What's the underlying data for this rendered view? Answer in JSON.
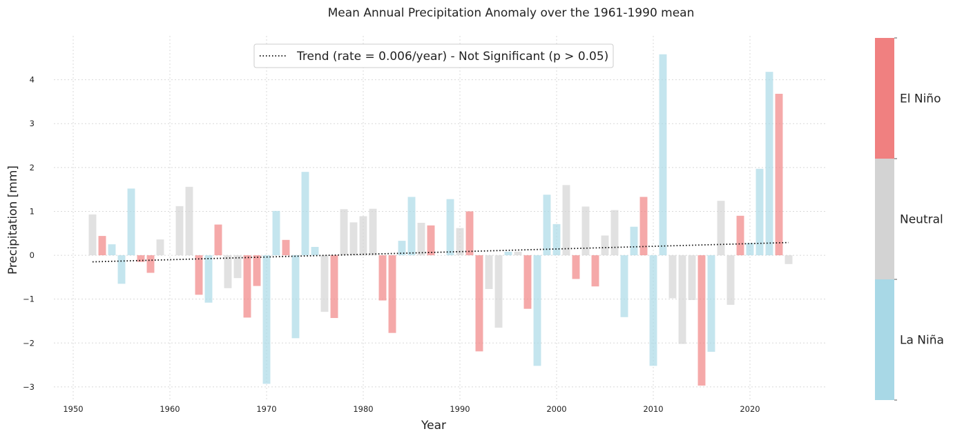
{
  "chart_data": {
    "type": "bar",
    "title": "Mean Annual Precipitation Anomaly over the 1961-1990 mean",
    "xlabel": "Year",
    "ylabel": "Precipitation [mm]",
    "xlim": [
      1948,
      2028
    ],
    "ylim": [
      -3.3,
      5.0
    ],
    "xticks": [
      1950,
      1960,
      1970,
      1980,
      1990,
      2000,
      2010,
      2020
    ],
    "yticks": [
      -3,
      -2,
      -1,
      0,
      1,
      2,
      3,
      4
    ],
    "grid": true,
    "legend_position": "top-center",
    "trend": {
      "label": "Trend (rate = 0.006/year) - Not Significant (p > 0.05)",
      "x": [
        1952,
        2024
      ],
      "y": [
        -0.15,
        0.29
      ],
      "style": "dotted",
      "color": "#000000"
    },
    "category_colors": {
      "La Niña": "#a8d8e6",
      "Neutral": "#d3d3d3",
      "El Niño": "#f08080"
    },
    "colorbar": [
      "La Niña",
      "Neutral",
      "El Niño"
    ],
    "bars": [
      {
        "x": 1952,
        "y": 0.93,
        "phase": "Neutral"
      },
      {
        "x": 1953,
        "y": 0.44,
        "phase": "El Niño"
      },
      {
        "x": 1954,
        "y": 0.25,
        "phase": "La Niña"
      },
      {
        "x": 1955,
        "y": -0.65,
        "phase": "La Niña"
      },
      {
        "x": 1956,
        "y": 1.52,
        "phase": "La Niña"
      },
      {
        "x": 1957,
        "y": -0.15,
        "phase": "El Niño"
      },
      {
        "x": 1958,
        "y": -0.4,
        "phase": "El Niño"
      },
      {
        "x": 1959,
        "y": 0.36,
        "phase": "Neutral"
      },
      {
        "x": 1960,
        "y": 0.0,
        "phase": "Neutral"
      },
      {
        "x": 1961,
        "y": 1.12,
        "phase": "Neutral"
      },
      {
        "x": 1962,
        "y": 1.56,
        "phase": "Neutral"
      },
      {
        "x": 1963,
        "y": -0.9,
        "phase": "El Niño"
      },
      {
        "x": 1964,
        "y": -1.08,
        "phase": "La Niña"
      },
      {
        "x": 1965,
        "y": 0.7,
        "phase": "El Niño"
      },
      {
        "x": 1966,
        "y": -0.75,
        "phase": "Neutral"
      },
      {
        "x": 1967,
        "y": -0.52,
        "phase": "Neutral"
      },
      {
        "x": 1968,
        "y": -1.42,
        "phase": "El Niño"
      },
      {
        "x": 1969,
        "y": -0.7,
        "phase": "El Niño"
      },
      {
        "x": 1970,
        "y": -2.93,
        "phase": "La Niña"
      },
      {
        "x": 1971,
        "y": 1.01,
        "phase": "La Niña"
      },
      {
        "x": 1972,
        "y": 0.35,
        "phase": "El Niño"
      },
      {
        "x": 1973,
        "y": -1.89,
        "phase": "La Niña"
      },
      {
        "x": 1974,
        "y": 1.9,
        "phase": "La Niña"
      },
      {
        "x": 1975,
        "y": 0.19,
        "phase": "La Niña"
      },
      {
        "x": 1976,
        "y": -1.29,
        "phase": "Neutral"
      },
      {
        "x": 1977,
        "y": -1.43,
        "phase": "El Niño"
      },
      {
        "x": 1978,
        "y": 1.05,
        "phase": "Neutral"
      },
      {
        "x": 1979,
        "y": 0.75,
        "phase": "Neutral"
      },
      {
        "x": 1980,
        "y": 0.89,
        "phase": "Neutral"
      },
      {
        "x": 1981,
        "y": 1.06,
        "phase": "Neutral"
      },
      {
        "x": 1982,
        "y": -1.03,
        "phase": "El Niño"
      },
      {
        "x": 1983,
        "y": -1.77,
        "phase": "El Niño"
      },
      {
        "x": 1984,
        "y": 0.33,
        "phase": "La Niña"
      },
      {
        "x": 1985,
        "y": 1.33,
        "phase": "La Niña"
      },
      {
        "x": 1986,
        "y": 0.74,
        "phase": "Neutral"
      },
      {
        "x": 1987,
        "y": 0.68,
        "phase": "El Niño"
      },
      {
        "x": 1988,
        "y": 0.0,
        "phase": "La Niña"
      },
      {
        "x": 1989,
        "y": 1.28,
        "phase": "La Niña"
      },
      {
        "x": 1990,
        "y": 0.62,
        "phase": "Neutral"
      },
      {
        "x": 1991,
        "y": 1.0,
        "phase": "El Niño"
      },
      {
        "x": 1992,
        "y": -2.19,
        "phase": "El Niño"
      },
      {
        "x": 1993,
        "y": -0.77,
        "phase": "Neutral"
      },
      {
        "x": 1994,
        "y": -1.65,
        "phase": "Neutral"
      },
      {
        "x": 1995,
        "y": 0.08,
        "phase": "La Niña"
      },
      {
        "x": 1996,
        "y": 0.08,
        "phase": "Neutral"
      },
      {
        "x": 1997,
        "y": -1.22,
        "phase": "El Niño"
      },
      {
        "x": 1998,
        "y": -2.52,
        "phase": "La Niña"
      },
      {
        "x": 1999,
        "y": 1.38,
        "phase": "La Niña"
      },
      {
        "x": 2000,
        "y": 0.71,
        "phase": "La Niña"
      },
      {
        "x": 2001,
        "y": 1.6,
        "phase": "Neutral"
      },
      {
        "x": 2002,
        "y": -0.54,
        "phase": "El Niño"
      },
      {
        "x": 2003,
        "y": 1.11,
        "phase": "Neutral"
      },
      {
        "x": 2004,
        "y": -0.71,
        "phase": "El Niño"
      },
      {
        "x": 2005,
        "y": 0.45,
        "phase": "Neutral"
      },
      {
        "x": 2006,
        "y": 1.03,
        "phase": "Neutral"
      },
      {
        "x": 2007,
        "y": -1.41,
        "phase": "La Niña"
      },
      {
        "x": 2008,
        "y": 0.65,
        "phase": "La Niña"
      },
      {
        "x": 2009,
        "y": 1.33,
        "phase": "El Niño"
      },
      {
        "x": 2010,
        "y": -2.52,
        "phase": "La Niña"
      },
      {
        "x": 2011,
        "y": 4.58,
        "phase": "La Niña"
      },
      {
        "x": 2012,
        "y": -0.98,
        "phase": "Neutral"
      },
      {
        "x": 2013,
        "y": -2.02,
        "phase": "Neutral"
      },
      {
        "x": 2014,
        "y": -1.02,
        "phase": "Neutral"
      },
      {
        "x": 2015,
        "y": -2.97,
        "phase": "El Niño"
      },
      {
        "x": 2016,
        "y": -2.2,
        "phase": "La Niña"
      },
      {
        "x": 2017,
        "y": 1.24,
        "phase": "Neutral"
      },
      {
        "x": 2018,
        "y": -1.13,
        "phase": "Neutral"
      },
      {
        "x": 2019,
        "y": 0.9,
        "phase": "El Niño"
      },
      {
        "x": 2020,
        "y": 0.28,
        "phase": "La Niña"
      },
      {
        "x": 2021,
        "y": 1.97,
        "phase": "La Niña"
      },
      {
        "x": 2022,
        "y": 4.18,
        "phase": "La Niña"
      },
      {
        "x": 2023,
        "y": 3.68,
        "phase": "El Niño"
      },
      {
        "x": 2024,
        "y": -0.2,
        "phase": "Neutral"
      }
    ]
  }
}
